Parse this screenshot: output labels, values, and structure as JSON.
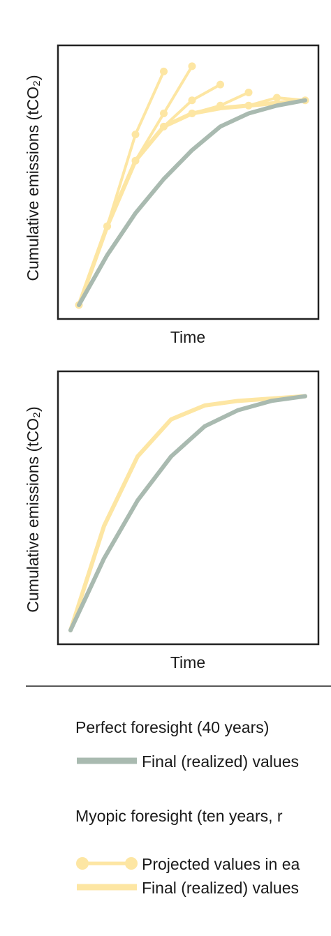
{
  "colors": {
    "perfect": "#a9bab0",
    "myopic": "#fde6a3",
    "frame": "#222222"
  },
  "chart_data": [
    {
      "type": "line",
      "xlabel": "Time",
      "ylabel": "Cumulative emissions (tCO₂)",
      "series": [
        {
          "name": "Final (realized) values",
          "group": "perfect",
          "style": "thick",
          "x": [
            0,
            1,
            2,
            3,
            4,
            5,
            6,
            7,
            8
          ],
          "y": [
            0.0,
            0.19,
            0.35,
            0.48,
            0.59,
            0.68,
            0.73,
            0.76,
            0.78
          ]
        },
        {
          "name": "Final (realized) values",
          "group": "myopic",
          "style": "thick",
          "x": [
            0,
            1,
            2,
            3,
            4,
            5,
            6,
            7,
            8
          ],
          "y": [
            0.0,
            0.3,
            0.55,
            0.68,
            0.73,
            0.75,
            0.76,
            0.77,
            0.78
          ]
        },
        {
          "name": "Projected values in each decade",
          "group": "myopic",
          "style": "markers",
          "x": [
            0,
            1,
            2,
            3
          ],
          "y": [
            0.0,
            0.3,
            0.65,
            0.89
          ]
        },
        {
          "name": "Projected values in each decade",
          "group": "myopic",
          "style": "markers",
          "x": [
            1,
            2,
            3,
            4
          ],
          "y": [
            0.3,
            0.55,
            0.73,
            0.91
          ]
        },
        {
          "name": "Projected values in each decade",
          "group": "myopic",
          "style": "markers",
          "x": [
            3,
            4,
            5
          ],
          "y": [
            0.68,
            0.78,
            0.84
          ]
        },
        {
          "name": "Projected values in each decade",
          "group": "myopic",
          "style": "markers",
          "x": [
            4,
            5,
            6
          ],
          "y": [
            0.73,
            0.76,
            0.81
          ]
        },
        {
          "name": "Projected values in each decade",
          "group": "myopic",
          "style": "markers",
          "x": [
            6,
            7,
            8
          ],
          "y": [
            0.76,
            0.79,
            0.78
          ]
        }
      ]
    },
    {
      "type": "line",
      "xlabel": "Time",
      "ylabel": "Cumulative emissions (tCO₂)",
      "series": [
        {
          "name": "Final (realized) values",
          "group": "perfect",
          "style": "thick",
          "x": [
            0,
            1,
            2,
            3,
            4,
            5,
            6,
            7
          ],
          "y": [
            0.0,
            0.31,
            0.56,
            0.75,
            0.88,
            0.95,
            0.99,
            1.01
          ]
        },
        {
          "name": "Final (realized) values",
          "group": "myopic",
          "style": "thick",
          "x": [
            0,
            1,
            2,
            3,
            4,
            5,
            6,
            7
          ],
          "y": [
            0.0,
            0.45,
            0.75,
            0.91,
            0.97,
            0.99,
            1.0,
            1.01
          ]
        }
      ]
    }
  ],
  "legend": {
    "perfect_title": "Perfect foresight (40 years)",
    "perfect_final": "Final (realized) values",
    "myopic_title": "Myopic foresight (ten years, r",
    "myopic_projected": "Projected values in ea",
    "myopic_final": "Final (realized) values"
  }
}
